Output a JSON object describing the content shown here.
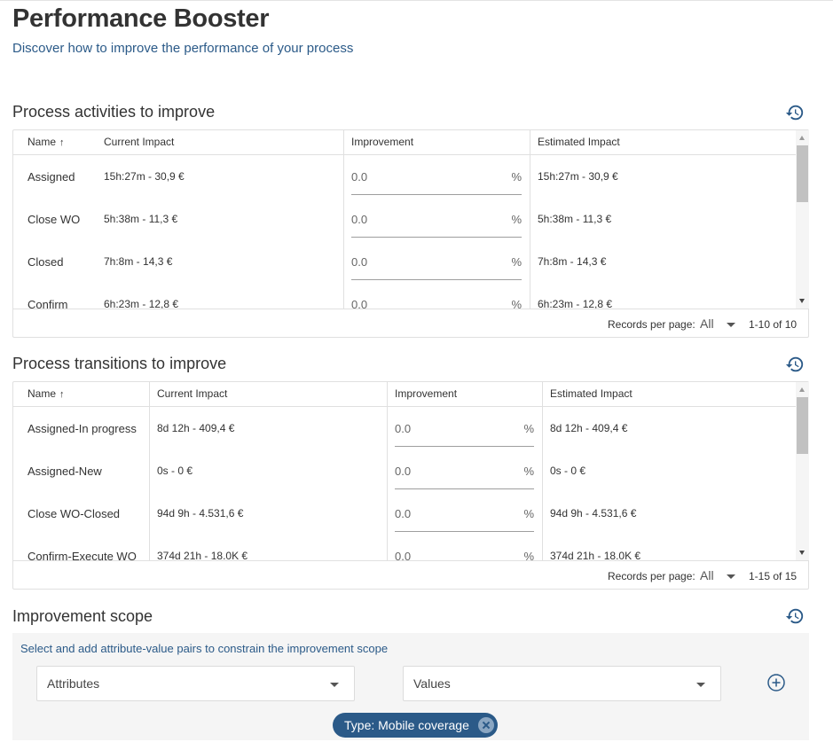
{
  "header": {
    "title": "Performance Booster",
    "subtitle": "Discover how to improve the performance of your process"
  },
  "colors": {
    "accent": "#2b5a88",
    "chip_bg": "#2b5a88",
    "scope_bg": "#f5f5f5"
  },
  "activities": {
    "title": "Process activities to improve",
    "history_icon": "history-icon",
    "columns": {
      "name": "Name",
      "sort_icon": "↑",
      "current": "Current Impact",
      "improvement": "Improvement",
      "estimated": "Estimated Impact"
    },
    "rows": [
      {
        "name": "Assigned",
        "current": "15h:27m - 30,9 €",
        "improvement": "0.0",
        "unit": "%",
        "estimated": "15h:27m - 30,9 €"
      },
      {
        "name": "Close WO",
        "current": "5h:38m - 11,3 €",
        "improvement": "0.0",
        "unit": "%",
        "estimated": "5h:38m - 11,3 €"
      },
      {
        "name": "Closed",
        "current": "7h:8m - 14,3 €",
        "improvement": "0.0",
        "unit": "%",
        "estimated": "7h:8m - 14,3 €"
      },
      {
        "name": "Confirm",
        "current": "6h:23m - 12,8 €",
        "improvement": "0.0",
        "unit": "%",
        "estimated": "6h:23m - 12,8 €"
      }
    ],
    "footer": {
      "rpp_label": "Records per page:",
      "rpp_value": "All",
      "range": "1-10 of 10"
    }
  },
  "transitions": {
    "title": "Process transitions to improve",
    "history_icon": "history-icon",
    "columns": {
      "name": "Name",
      "sort_icon": "↑",
      "current": "Current Impact",
      "improvement": "Improvement",
      "estimated": "Estimated Impact"
    },
    "rows": [
      {
        "name": "Assigned-In progress",
        "current": "8d 12h - 409,4 €",
        "improvement": "0.0",
        "unit": "%",
        "estimated": "8d 12h - 409,4 €"
      },
      {
        "name": "Assigned-New",
        "current": "0s - 0 €",
        "improvement": "0.0",
        "unit": "%",
        "estimated": "0s - 0 €"
      },
      {
        "name": "Close WO-Closed",
        "current": "94d 9h - 4.531,6 €",
        "improvement": "0.0",
        "unit": "%",
        "estimated": "94d 9h - 4.531,6 €"
      },
      {
        "name": "Confirm-Execute WO",
        "current": "374d 21h - 18.0K €",
        "improvement": "0.0",
        "unit": "%",
        "estimated": "374d 21h - 18.0K €"
      }
    ],
    "footer": {
      "rpp_label": "Records per page:",
      "rpp_value": "All",
      "range": "1-15 of 15"
    }
  },
  "scope": {
    "title": "Improvement scope",
    "hint": "Select and add attribute-value pairs to constrain the improvement scope",
    "attributes_label": "Attributes",
    "values_label": "Values",
    "add_icon": "add-circle-icon",
    "chips": [
      {
        "label": "Type: Mobile coverage"
      }
    ]
  }
}
